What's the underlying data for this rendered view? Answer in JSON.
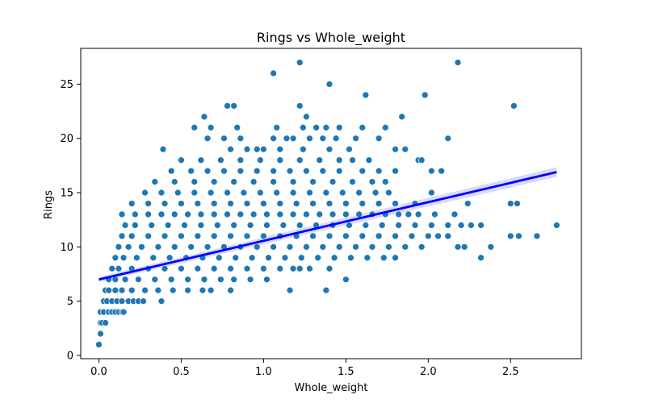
{
  "chart_data": {
    "type": "scatter",
    "title": "Rings vs Whole_weight",
    "xlabel": "Whole_weight",
    "ylabel": "Rings",
    "xlim": [
      -0.11,
      2.93
    ],
    "ylim": [
      -0.3,
      28.3
    ],
    "xticks": [
      "0.0",
      "0.5",
      "1.0",
      "1.5",
      "2.0",
      "2.5"
    ],
    "yticks": [
      "0",
      "5",
      "10",
      "15",
      "20",
      "25"
    ],
    "point_color": "#1f77b4",
    "regression": {
      "color": "#0000ff",
      "ci_color": "#0000ff",
      "start": [
        0.0,
        7.0
      ],
      "end": [
        2.78,
        16.9
      ],
      "ci_halfwidth_start": 0.25,
      "ci_halfwidth_end": 0.45
    },
    "points": [
      [
        0.0,
        1
      ],
      [
        0.01,
        2
      ],
      [
        0.01,
        3
      ],
      [
        0.02,
        3
      ],
      [
        0.04,
        3
      ],
      [
        0.01,
        4
      ],
      [
        0.03,
        4
      ],
      [
        0.06,
        4
      ],
      [
        0.08,
        4
      ],
      [
        0.1,
        4
      ],
      [
        0.12,
        4
      ],
      [
        0.14,
        4
      ],
      [
        0.15,
        4
      ],
      [
        0.03,
        5
      ],
      [
        0.05,
        5
      ],
      [
        0.08,
        5
      ],
      [
        0.11,
        5
      ],
      [
        0.14,
        5
      ],
      [
        0.18,
        5
      ],
      [
        0.21,
        5
      ],
      [
        0.24,
        5
      ],
      [
        0.27,
        5
      ],
      [
        0.38,
        5
      ],
      [
        0.04,
        6
      ],
      [
        0.06,
        6
      ],
      [
        0.1,
        6
      ],
      [
        0.14,
        6
      ],
      [
        0.2,
        6
      ],
      [
        0.28,
        6
      ],
      [
        0.36,
        6
      ],
      [
        0.45,
        6
      ],
      [
        0.54,
        6
      ],
      [
        0.63,
        6
      ],
      [
        0.68,
        6
      ],
      [
        0.8,
        6
      ],
      [
        1.16,
        6
      ],
      [
        1.38,
        6
      ],
      [
        0.06,
        7
      ],
      [
        0.1,
        7
      ],
      [
        0.16,
        7
      ],
      [
        0.24,
        7
      ],
      [
        0.34,
        7
      ],
      [
        0.44,
        7
      ],
      [
        0.54,
        7
      ],
      [
        0.64,
        7
      ],
      [
        0.74,
        7
      ],
      [
        0.82,
        7
      ],
      [
        0.92,
        7
      ],
      [
        1.02,
        7
      ],
      [
        1.5,
        7
      ],
      [
        0.08,
        8
      ],
      [
        0.12,
        8
      ],
      [
        0.2,
        8
      ],
      [
        0.3,
        8
      ],
      [
        0.4,
        8
      ],
      [
        0.5,
        8
      ],
      [
        0.6,
        8
      ],
      [
        0.7,
        8
      ],
      [
        0.8,
        8
      ],
      [
        0.9,
        8
      ],
      [
        1.0,
        8
      ],
      [
        1.1,
        8
      ],
      [
        1.18,
        8
      ],
      [
        1.22,
        8
      ],
      [
        1.28,
        8
      ],
      [
        1.4,
        8
      ],
      [
        0.1,
        9
      ],
      [
        0.15,
        9
      ],
      [
        0.23,
        9
      ],
      [
        0.33,
        9
      ],
      [
        0.43,
        9
      ],
      [
        0.53,
        9
      ],
      [
        0.63,
        9
      ],
      [
        0.73,
        9
      ],
      [
        0.83,
        9
      ],
      [
        0.93,
        9
      ],
      [
        1.03,
        9
      ],
      [
        1.13,
        9
      ],
      [
        1.23,
        9
      ],
      [
        1.33,
        9
      ],
      [
        1.43,
        9
      ],
      [
        1.53,
        9
      ],
      [
        1.63,
        9
      ],
      [
        1.73,
        9
      ],
      [
        1.8,
        9
      ],
      [
        2.32,
        9
      ],
      [
        0.12,
        10
      ],
      [
        0.18,
        10
      ],
      [
        0.26,
        10
      ],
      [
        0.36,
        10
      ],
      [
        0.46,
        10
      ],
      [
        0.56,
        10
      ],
      [
        0.66,
        10
      ],
      [
        0.76,
        10
      ],
      [
        0.86,
        10
      ],
      [
        0.96,
        10
      ],
      [
        1.06,
        10
      ],
      [
        1.16,
        10
      ],
      [
        1.26,
        10
      ],
      [
        1.36,
        10
      ],
      [
        1.46,
        10
      ],
      [
        1.56,
        10
      ],
      [
        1.66,
        10
      ],
      [
        1.76,
        10
      ],
      [
        1.86,
        10
      ],
      [
        1.96,
        10
      ],
      [
        2.18,
        10
      ],
      [
        2.22,
        10
      ],
      [
        2.38,
        10
      ],
      [
        0.14,
        11
      ],
      [
        0.2,
        11
      ],
      [
        0.3,
        11
      ],
      [
        0.4,
        11
      ],
      [
        0.5,
        11
      ],
      [
        0.6,
        11
      ],
      [
        0.7,
        11
      ],
      [
        0.8,
        11
      ],
      [
        0.9,
        11
      ],
      [
        1.0,
        11
      ],
      [
        1.1,
        11
      ],
      [
        1.2,
        11
      ],
      [
        1.3,
        11
      ],
      [
        1.4,
        11
      ],
      [
        1.5,
        11
      ],
      [
        1.6,
        11
      ],
      [
        1.7,
        11
      ],
      [
        1.8,
        11
      ],
      [
        1.9,
        11
      ],
      [
        2.0,
        11
      ],
      [
        2.06,
        11
      ],
      [
        2.12,
        11
      ],
      [
        2.5,
        11
      ],
      [
        2.55,
        11
      ],
      [
        2.66,
        11
      ],
      [
        0.16,
        12
      ],
      [
        0.22,
        12
      ],
      [
        0.32,
        12
      ],
      [
        0.42,
        12
      ],
      [
        0.52,
        12
      ],
      [
        0.62,
        12
      ],
      [
        0.72,
        12
      ],
      [
        0.82,
        12
      ],
      [
        0.92,
        12
      ],
      [
        1.02,
        12
      ],
      [
        1.12,
        12
      ],
      [
        1.22,
        12
      ],
      [
        1.32,
        12
      ],
      [
        1.42,
        12
      ],
      [
        1.52,
        12
      ],
      [
        1.62,
        12
      ],
      [
        1.72,
        12
      ],
      [
        1.82,
        12
      ],
      [
        1.92,
        12
      ],
      [
        2.02,
        12
      ],
      [
        2.12,
        12
      ],
      [
        2.2,
        12
      ],
      [
        2.26,
        12
      ],
      [
        2.32,
        12
      ],
      [
        2.78,
        12
      ],
      [
        0.14,
        13
      ],
      [
        0.22,
        13
      ],
      [
        0.3,
        13
      ],
      [
        0.38,
        13
      ],
      [
        0.46,
        13
      ],
      [
        0.54,
        13
      ],
      [
        0.62,
        13
      ],
      [
        0.7,
        13
      ],
      [
        0.78,
        13
      ],
      [
        0.86,
        13
      ],
      [
        0.94,
        13
      ],
      [
        1.02,
        13
      ],
      [
        1.1,
        13
      ],
      [
        1.18,
        13
      ],
      [
        1.26,
        13
      ],
      [
        1.34,
        13
      ],
      [
        1.42,
        13
      ],
      [
        1.5,
        13
      ],
      [
        1.58,
        13
      ],
      [
        1.66,
        13
      ],
      [
        1.74,
        13
      ],
      [
        1.82,
        13
      ],
      [
        1.88,
        13
      ],
      [
        1.94,
        13
      ],
      [
        2.04,
        13
      ],
      [
        2.16,
        13
      ],
      [
        0.2,
        14
      ],
      [
        0.3,
        14
      ],
      [
        0.4,
        14
      ],
      [
        0.5,
        14
      ],
      [
        0.6,
        14
      ],
      [
        0.7,
        14
      ],
      [
        0.8,
        14
      ],
      [
        0.9,
        14
      ],
      [
        1.0,
        14
      ],
      [
        1.1,
        14
      ],
      [
        1.2,
        14
      ],
      [
        1.3,
        14
      ],
      [
        1.4,
        14
      ],
      [
        1.5,
        14
      ],
      [
        1.6,
        14
      ],
      [
        1.7,
        14
      ],
      [
        1.8,
        14
      ],
      [
        1.92,
        14
      ],
      [
        2.24,
        14
      ],
      [
        2.5,
        14
      ],
      [
        2.54,
        14
      ],
      [
        0.28,
        15
      ],
      [
        0.38,
        15
      ],
      [
        0.48,
        15
      ],
      [
        0.58,
        15
      ],
      [
        0.68,
        15
      ],
      [
        0.78,
        15
      ],
      [
        0.88,
        15
      ],
      [
        0.98,
        15
      ],
      [
        1.08,
        15
      ],
      [
        1.18,
        15
      ],
      [
        1.28,
        15
      ],
      [
        1.38,
        15
      ],
      [
        1.48,
        15
      ],
      [
        1.58,
        15
      ],
      [
        1.68,
        15
      ],
      [
        1.76,
        15
      ],
      [
        2.02,
        15
      ],
      [
        0.34,
        16
      ],
      [
        0.46,
        16
      ],
      [
        0.58,
        16
      ],
      [
        0.7,
        16
      ],
      [
        0.82,
        16
      ],
      [
        0.94,
        16
      ],
      [
        1.06,
        16
      ],
      [
        1.18,
        16
      ],
      [
        1.3,
        16
      ],
      [
        1.42,
        16
      ],
      [
        1.54,
        16
      ],
      [
        1.66,
        16
      ],
      [
        1.74,
        16
      ],
      [
        0.44,
        17
      ],
      [
        0.56,
        17
      ],
      [
        0.66,
        17
      ],
      [
        0.76,
        17
      ],
      [
        0.86,
        17
      ],
      [
        0.96,
        17
      ],
      [
        1.06,
        17
      ],
      [
        1.16,
        17
      ],
      [
        1.26,
        17
      ],
      [
        1.36,
        17
      ],
      [
        1.46,
        17
      ],
      [
        1.6,
        17
      ],
      [
        1.7,
        17
      ],
      [
        1.8,
        17
      ],
      [
        2.02,
        17
      ],
      [
        2.08,
        17
      ],
      [
        0.5,
        18
      ],
      [
        0.62,
        18
      ],
      [
        0.74,
        18
      ],
      [
        0.86,
        18
      ],
      [
        0.98,
        18
      ],
      [
        1.1,
        18
      ],
      [
        1.22,
        18
      ],
      [
        1.34,
        18
      ],
      [
        1.46,
        18
      ],
      [
        1.54,
        18
      ],
      [
        1.64,
        18
      ],
      [
        1.94,
        18
      ],
      [
        1.96,
        18
      ],
      [
        0.39,
        19
      ],
      [
        0.8,
        19
      ],
      [
        0.9,
        19
      ],
      [
        0.96,
        19
      ],
      [
        1.0,
        19
      ],
      [
        1.1,
        19
      ],
      [
        1.24,
        19
      ],
      [
        1.4,
        19
      ],
      [
        1.52,
        19
      ],
      [
        1.8,
        19
      ],
      [
        1.86,
        19
      ],
      [
        0.66,
        20
      ],
      [
        0.76,
        20
      ],
      [
        0.86,
        20
      ],
      [
        1.06,
        20
      ],
      [
        1.14,
        20
      ],
      [
        1.18,
        20
      ],
      [
        1.28,
        20
      ],
      [
        1.36,
        20
      ],
      [
        1.44,
        20
      ],
      [
        1.56,
        20
      ],
      [
        1.7,
        20
      ],
      [
        2.12,
        20
      ],
      [
        0.58,
        21
      ],
      [
        0.68,
        21
      ],
      [
        0.84,
        21
      ],
      [
        1.08,
        21
      ],
      [
        1.24,
        21
      ],
      [
        1.32,
        21
      ],
      [
        1.38,
        21
      ],
      [
        1.46,
        21
      ],
      [
        1.6,
        21
      ],
      [
        1.74,
        21
      ],
      [
        0.64,
        22
      ],
      [
        1.26,
        22
      ],
      [
        1.84,
        22
      ],
      [
        0.78,
        23
      ],
      [
        0.82,
        23
      ],
      [
        1.22,
        23
      ],
      [
        2.52,
        23
      ],
      [
        1.62,
        24
      ],
      [
        1.98,
        24
      ],
      [
        1.4,
        25
      ],
      [
        1.06,
        26
      ],
      [
        1.22,
        27
      ],
      [
        2.18,
        27
      ]
    ]
  }
}
